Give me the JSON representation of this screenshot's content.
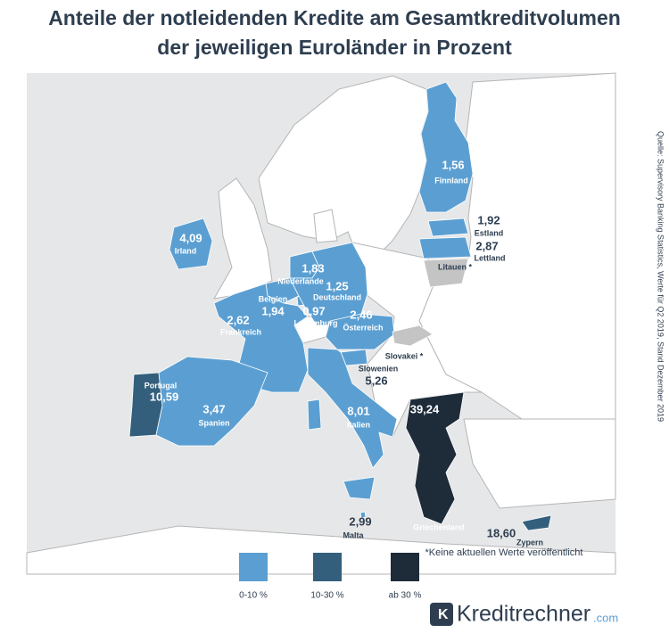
{
  "map": {
    "title": [
      "Anteile der notleidenden Kredite am Gesamtkreditvolumen",
      "der jeweiligen Euroländer in Prozent"
    ],
    "regions": [
      {
        "name": "Finnland",
        "value": 1.56,
        "value_label": "1,56",
        "color": "#5b9fd2"
      },
      {
        "name": "Estland",
        "value": 1.92,
        "value_label": "1,92",
        "color": "#5b9fd2"
      },
      {
        "name": "Lettland",
        "value": 2.87,
        "value_label": "2,87",
        "color": "#5b9fd2"
      },
      {
        "name": "Irland",
        "value": 4.09,
        "value_label": "4,09",
        "color": "#5b9fd2"
      },
      {
        "name": "Niederlande",
        "value": 1.83,
        "value_label": "1,83",
        "color": "#5b9fd2"
      },
      {
        "name": "Belgien",
        "value": 1.94,
        "value_label": "1,94",
        "color": "#5b9fd2"
      },
      {
        "name": "Deutschland",
        "value": 1.25,
        "value_label": "1,25",
        "color": "#5b9fd2"
      },
      {
        "name": "Luxemburg",
        "value": 0.97,
        "value_label": "0,97",
        "color": "#5b9fd2"
      },
      {
        "name": "Frankreich",
        "value": 2.62,
        "value_label": "2,62",
        "color": "#5b9fd2"
      },
      {
        "name": "Österreich",
        "value": 2.46,
        "value_label": "2,46",
        "color": "#5b9fd2"
      },
      {
        "name": "Slowenien",
        "value": 5.26,
        "value_label": "5,26",
        "color": "#5b9fd2"
      },
      {
        "name": "Portugal",
        "value": 10.59,
        "value_label": "10,59",
        "color": "#335f7d"
      },
      {
        "name": "Spanien",
        "value": 3.47,
        "value_label": "3,47",
        "color": "#5b9fd2"
      },
      {
        "name": "Italien",
        "value": 8.01,
        "value_label": "8,01",
        "color": "#5b9fd2"
      },
      {
        "name": "Malta",
        "value": 2.99,
        "value_label": "2,99",
        "color": "#5b9fd2"
      },
      {
        "name": "Griechenland",
        "value": 39.24,
        "value_label": "39,24",
        "color": "#1e2c3a"
      },
      {
        "name": "Zypern",
        "value": 18.6,
        "value_label": "18,60",
        "color": "#335f7d"
      }
    ],
    "unreported": [
      {
        "name": "Litauen *",
        "color": "#c4c4c4"
      },
      {
        "name": "Slovakei *",
        "color": "#c4c4c4"
      }
    ],
    "legend": [
      {
        "label": "0-10 %",
        "color": "#5b9fd2"
      },
      {
        "label": "10-30 %",
        "color": "#335f7d"
      },
      {
        "label": "ab 30 %",
        "color": "#1e2c3a"
      }
    ],
    "note": "*Keine aktuellen Werte veröffentlicht",
    "source": "Quelle: Supervisory Banking Statistics, Werte für Q2 2019, Stand Dezember 2019",
    "logo": {
      "name": "Kreditrechner",
      "suffix": ".com"
    }
  }
}
